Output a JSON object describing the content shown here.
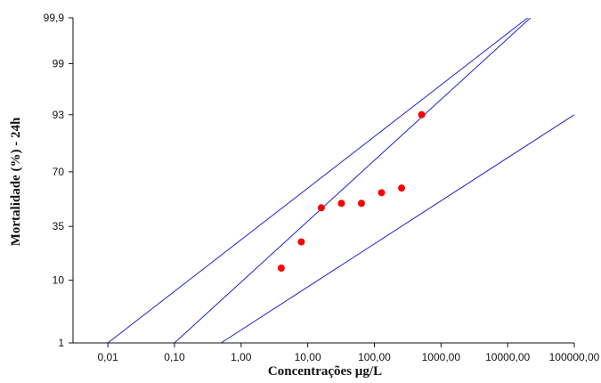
{
  "chart_data": {
    "type": "scatter",
    "xlabel": "Concentrações µg/L",
    "ylabel": "Mortalidade (%) - 24h",
    "x_scale": "log",
    "y_scale": "probit",
    "xlim": [
      0.003,
      100000
    ],
    "ylim": [
      1,
      99.9
    ],
    "x_ticks": [
      {
        "value": 0.01,
        "label": "0,01"
      },
      {
        "value": 0.1,
        "label": "0,10"
      },
      {
        "value": 1,
        "label": "1,00"
      },
      {
        "value": 10,
        "label": "10,00"
      },
      {
        "value": 100,
        "label": "100,00"
      },
      {
        "value": 1000,
        "label": "1000,00"
      },
      {
        "value": 10000,
        "label": "10000,00"
      },
      {
        "value": 100000,
        "label": "100000,00"
      }
    ],
    "y_ticks": [
      {
        "value": 1,
        "label": "1"
      },
      {
        "value": 10,
        "label": "10"
      },
      {
        "value": 35,
        "label": "35"
      },
      {
        "value": 70,
        "label": "70"
      },
      {
        "value": 93,
        "label": "93"
      },
      {
        "value": 99,
        "label": "99"
      },
      {
        "value": 99.9,
        "label": "99,9"
      }
    ],
    "points": [
      {
        "x": 4,
        "y": 14
      },
      {
        "x": 8,
        "y": 26
      },
      {
        "x": 16,
        "y": 47
      },
      {
        "x": 32,
        "y": 50
      },
      {
        "x": 64,
        "y": 50
      },
      {
        "x": 128,
        "y": 57
      },
      {
        "x": 256,
        "y": 60
      },
      {
        "x": 512,
        "y": 93
      }
    ],
    "lines": [
      {
        "role": "fit",
        "x": [
          0.1,
          22000
        ],
        "y": [
          1,
          99.9
        ]
      },
      {
        "role": "upper-confidence",
        "x": [
          0.01,
          20000
        ],
        "y": [
          1,
          99.9
        ]
      },
      {
        "role": "lower-confidence",
        "x": [
          0.5,
          100000
        ],
        "y": [
          1,
          93
        ]
      }
    ],
    "grid": false,
    "legend": "none",
    "colors": {
      "points": "#ff0000",
      "lines": "#2222cc",
      "axes": "#111111"
    }
  }
}
